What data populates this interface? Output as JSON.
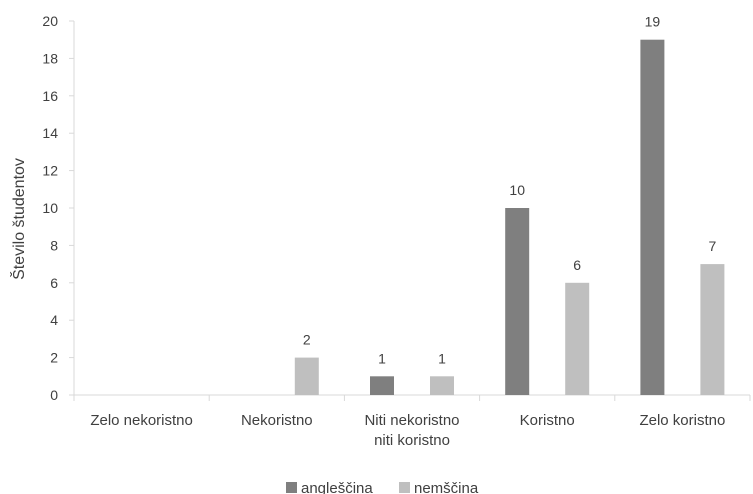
{
  "chart_data": {
    "type": "bar",
    "title": "",
    "xlabel": "",
    "ylabel": "Število študentov",
    "ylim": [
      0,
      20
    ],
    "ytick_step": 2,
    "grid": false,
    "legend_position": "bottom",
    "categories": [
      [
        "Zelo nekoristno"
      ],
      [
        "Nekoristno"
      ],
      [
        "Niti nekoristno",
        "niti koristno"
      ],
      [
        "Koristno"
      ],
      [
        "Zelo koristno"
      ]
    ],
    "series": [
      {
        "name": "angleščina",
        "color": "#7f7f7f",
        "values": [
          0,
          0,
          1,
          10,
          19
        ],
        "labels": [
          "",
          "",
          "1",
          "10",
          "19"
        ]
      },
      {
        "name": "nemščina",
        "color": "#bfbfbf",
        "values": [
          0,
          2,
          1,
          6,
          7
        ],
        "labels": [
          "",
          "2",
          "1",
          "6",
          "7"
        ]
      }
    ]
  }
}
